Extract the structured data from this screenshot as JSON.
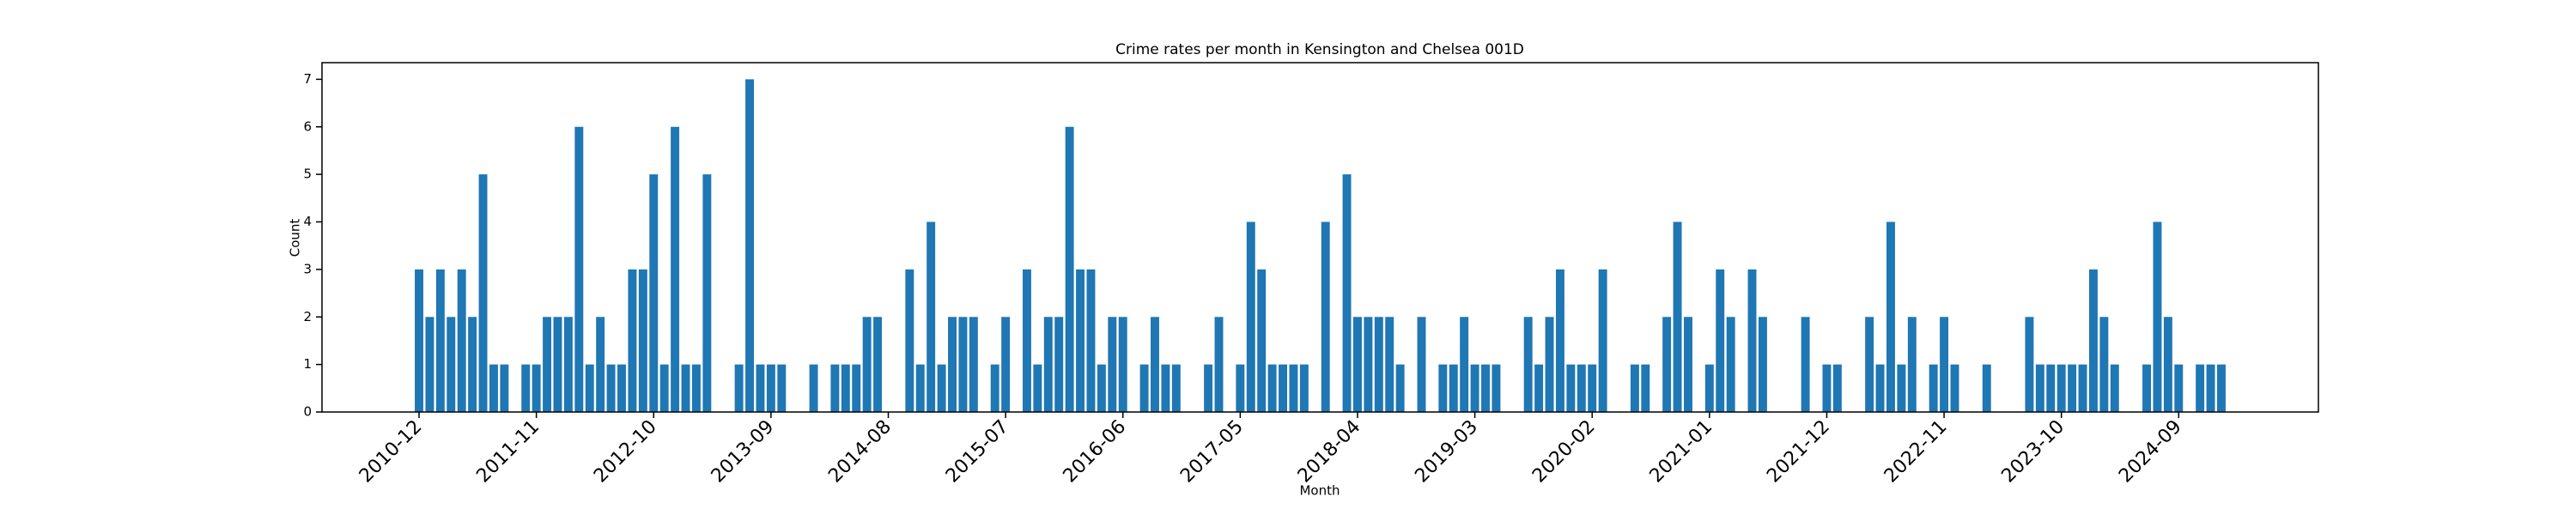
{
  "chart_data": {
    "type": "bar",
    "title": "Crime rates per month in Kensington and Chelsea 001D",
    "x_label": "Month",
    "y_label": "Count",
    "color": "#1f77b4",
    "categories": [
      "2010-12",
      null,
      null,
      null,
      null,
      null,
      null,
      null,
      null,
      null,
      null,
      "2011-11",
      null,
      null,
      null,
      null,
      null,
      null,
      null,
      null,
      null,
      null,
      "2012-10",
      null,
      null,
      null,
      null,
      null,
      null,
      null,
      null,
      null,
      null,
      "2013-09",
      null,
      null,
      null,
      null,
      null,
      null,
      null,
      null,
      null,
      null,
      "2014-08",
      null,
      null,
      null,
      null,
      null,
      null,
      null,
      null,
      null,
      null,
      "2015-07",
      null,
      null,
      null,
      null,
      null,
      null,
      null,
      null,
      null,
      null,
      "2016-06",
      null,
      null,
      null,
      null,
      null,
      null,
      null,
      null,
      null,
      null,
      "2017-05",
      null,
      null,
      null,
      null,
      null,
      null,
      null,
      null,
      null,
      null,
      "2018-04",
      null,
      null,
      null,
      null,
      null,
      null,
      null,
      null,
      null,
      null,
      "2019-03",
      null,
      null,
      null,
      null,
      null,
      null,
      null,
      null,
      null,
      null,
      "2020-02",
      null,
      null,
      null,
      null,
      null,
      null,
      null,
      null,
      null,
      null,
      "2021-01",
      null,
      null,
      null,
      null,
      null,
      null,
      null,
      null,
      null,
      null,
      "2021-12",
      null,
      null,
      null,
      null,
      null,
      null,
      null,
      null,
      null,
      null,
      "2022-11",
      null,
      null,
      null,
      null,
      null,
      null,
      null,
      null,
      null,
      null,
      "2023-10",
      null,
      null,
      null,
      null,
      null,
      null,
      null,
      null,
      null,
      null,
      "2024-09",
      null,
      null,
      null,
      null
    ],
    "values": [
      3,
      2,
      3,
      2,
      3,
      2,
      5,
      1,
      1,
      null,
      1,
      1,
      2,
      2,
      2,
      6,
      1,
      2,
      1,
      1,
      3,
      3,
      5,
      1,
      6,
      1,
      1,
      5,
      null,
      null,
      1,
      7,
      1,
      1,
      1,
      null,
      null,
      1,
      null,
      1,
      1,
      1,
      2,
      2,
      null,
      null,
      3,
      1,
      4,
      1,
      2,
      2,
      2,
      null,
      1,
      2,
      null,
      3,
      1,
      2,
      2,
      6,
      3,
      3,
      1,
      2,
      2,
      null,
      1,
      2,
      1,
      1,
      null,
      null,
      1,
      2,
      null,
      1,
      4,
      3,
      1,
      1,
      1,
      1,
      null,
      4,
      null,
      5,
      2,
      2,
      2,
      2,
      1,
      null,
      2,
      null,
      1,
      1,
      2,
      1,
      1,
      1,
      null,
      null,
      2,
      1,
      2,
      3,
      1,
      1,
      1,
      3,
      null,
      null,
      1,
      1,
      null,
      2,
      4,
      2,
      null,
      1,
      3,
      2,
      null,
      3,
      2,
      null,
      null,
      null,
      2,
      null,
      1,
      1,
      null,
      null,
      2,
      1,
      4,
      1,
      2,
      null,
      1,
      2,
      1,
      null,
      null,
      1,
      null,
      null,
      null,
      2,
      1,
      1,
      1,
      1,
      1,
      3,
      2,
      1,
      null,
      null,
      1,
      4,
      2,
      1,
      null,
      1,
      1,
      1
    ],
    "ylim": [
      0,
      7.35
    ],
    "yticks": [
      0,
      1,
      2,
      3,
      4,
      5,
      6,
      7
    ]
  }
}
